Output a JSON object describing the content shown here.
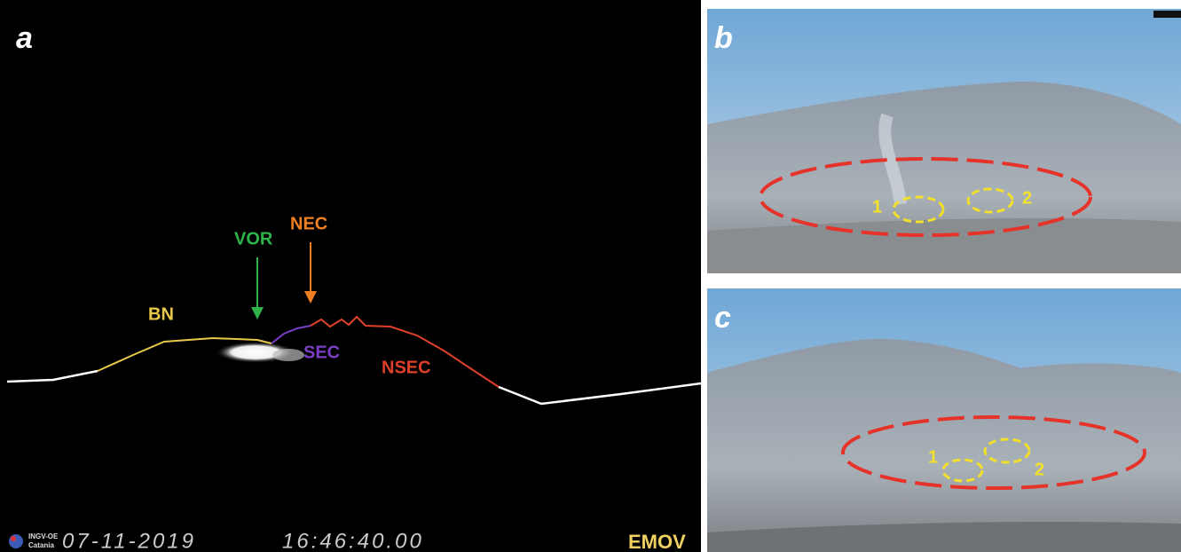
{
  "panel_a": {
    "label": "a",
    "craters": {
      "bn": "BN",
      "vor": "VOR",
      "nec": "NEC",
      "sec": "SEC",
      "nsec": "NSEC"
    },
    "logo": [
      "INGV-OE",
      "Catania"
    ],
    "date": "07-11-2019",
    "time": "16:46:40.00",
    "camera": "EMOV"
  },
  "panel_b": {
    "label": "b",
    "vents": [
      "1",
      "2"
    ]
  },
  "panel_c": {
    "label": "c",
    "vents": [
      "1",
      "2"
    ]
  }
}
